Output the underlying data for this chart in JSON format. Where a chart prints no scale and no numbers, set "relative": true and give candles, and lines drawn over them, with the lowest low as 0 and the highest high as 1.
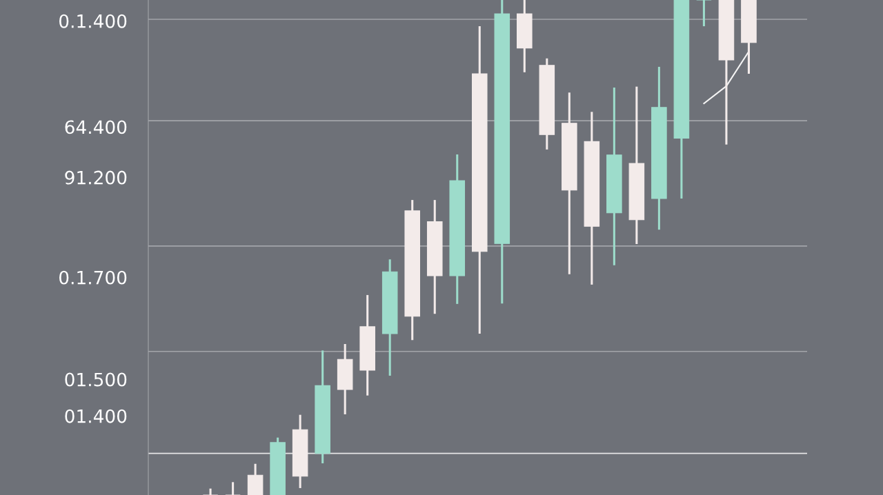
{
  "chart_data": {
    "type": "candlestick",
    "relative": true,
    "categories": [
      null,
      null,
      null,
      null,
      null,
      null,
      null,
      null,
      null,
      null,
      null,
      null,
      null,
      null,
      null,
      null,
      null,
      null,
      null,
      null,
      null,
      null,
      null,
      null,
      null
    ],
    "ohlc": [
      [
        0,
        0.013,
        0,
        0
      ],
      [
        0,
        0.026,
        0,
        0
      ],
      [
        0.04,
        0.063,
        0,
        0
      ],
      [
        0,
        0.116,
        0,
        0.106
      ],
      [
        0.132,
        0.162,
        0.014,
        0.038
      ],
      [
        0.084,
        0.292,
        0.064,
        0.221
      ],
      [
        0.274,
        0.305,
        0.163,
        0.213
      ],
      [
        0.34,
        0.404,
        0.201,
        0.252
      ],
      [
        0.326,
        0.476,
        0.241,
        0.451
      ],
      [
        0.574,
        0.596,
        0.313,
        0.361
      ],
      [
        0.552,
        0.596,
        0.366,
        0.443
      ],
      [
        0.443,
        0.688,
        0.386,
        0.635
      ],
      [
        0.851,
        0.947,
        0.326,
        0.492
      ],
      [
        0.508,
        1,
        0.387,
        0.972
      ],
      [
        0.972,
        1,
        0.854,
        0.903
      ],
      [
        0.868,
        0.882,
        0.698,
        0.728
      ],
      [
        0.751,
        0.813,
        0.446,
        0.616
      ],
      [
        0.714,
        0.774,
        0.425,
        0.543
      ],
      [
        0.57,
        0.823,
        0.464,
        0.687
      ],
      [
        0.67,
        0.825,
        0.507,
        0.556
      ],
      [
        0.599,
        0.865,
        0.536,
        0.783
      ],
      [
        0.721,
        1,
        0.599,
        1
      ],
      [
        1,
        1,
        0.947,
        1
      ],
      [
        1,
        1,
        0.708,
        0.879
      ],
      [
        1,
        1,
        0.851,
        0.914
      ]
    ],
    "colors": [
      "#f3ebea",
      "#f3ebea",
      "#f3ebea",
      "#9ddccb",
      "#f3ebea",
      "#9ddccb",
      "#f3ebea",
      "#f3ebea",
      "#9ddccb",
      "#f3ebea",
      "#f3ebea",
      "#9ddccb",
      "#f3ebea",
      "#9ddccb",
      "#f3ebea",
      "#f3ebea",
      "#f3ebea",
      "#f3ebea",
      "#9ddccb",
      "#f3ebea",
      "#9ddccb",
      "#9ddccb",
      "#9ddccb",
      "#f3ebea",
      "#f3ebea"
    ],
    "series": [
      {
        "type": "line",
        "color": "#f4f4f4",
        "values": [
          null,
          null,
          null,
          null,
          null,
          null,
          null,
          null,
          null,
          null,
          null,
          null,
          null,
          null,
          null,
          null,
          null,
          null,
          null,
          null,
          null,
          null,
          0.791,
          0.826,
          0.896
        ]
      }
    ],
    "annotations": [
      "0.1.400",
      "64.400",
      "91.200",
      "0.1.700",
      "01.500",
      "01.400"
    ],
    "ref_lines": [
      {
        "axis": "y",
        "value": 0.961,
        "color": "#a3a5aa"
      },
      {
        "axis": "y",
        "value": 0.756,
        "color": "#a3a5aa"
      },
      {
        "axis": "y",
        "value": 0.503,
        "color": "#a3a5aa"
      },
      {
        "axis": "y",
        "value": 0.29,
        "color": "#a3a5aa"
      },
      {
        "axis": "y",
        "value": 0.084,
        "color": "#e6e6e6"
      }
    ]
  }
}
